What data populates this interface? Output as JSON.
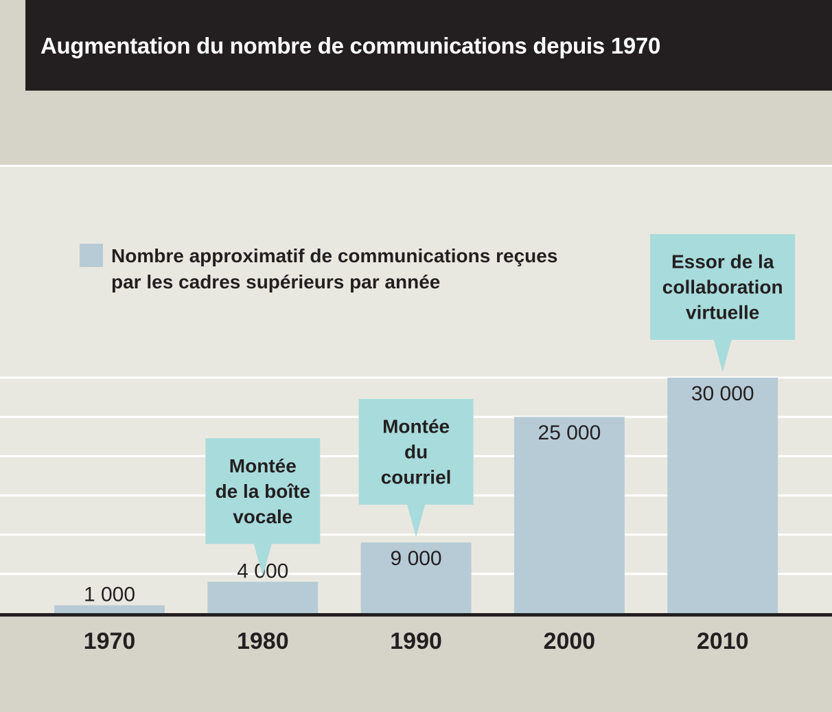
{
  "title": "Augmentation du nombre de communications depuis 1970",
  "legend": {
    "label": "Nombre approximatif de communications reçues par les cadres supérieurs par année",
    "color": "#b7cbd6"
  },
  "colors": {
    "bar": "#b7cbd6",
    "callout": "#a8dbdc",
    "title_bg": "#231f20",
    "plot_bg": "#e9e8e0",
    "band_bg": "#d6d4c8"
  },
  "chart_data": {
    "type": "bar",
    "categories": [
      "1970",
      "1980",
      "1990",
      "2000",
      "2010"
    ],
    "values": [
      1000,
      4000,
      9000,
      25000,
      30000
    ],
    "value_labels": [
      "1 000",
      "4 000",
      "9 000",
      "25 000",
      "30 000"
    ],
    "series": [
      {
        "name": "Nombre approximatif de communications reçues par les cadres supérieurs par année",
        "values": [
          1000,
          4000,
          9000,
          25000,
          30000
        ]
      }
    ],
    "ylim": [
      0,
      30000
    ],
    "grid": true,
    "legend_position": "top-left",
    "annotations": [
      {
        "category": "1980",
        "lines": [
          "Montée",
          "de la boîte",
          "vocale"
        ]
      },
      {
        "category": "1990",
        "lines": [
          "Montée",
          "du",
          "courriel"
        ]
      },
      {
        "category": "2010",
        "lines": [
          "Essor de la",
          "collaboration",
          "virtuelle"
        ]
      }
    ]
  }
}
